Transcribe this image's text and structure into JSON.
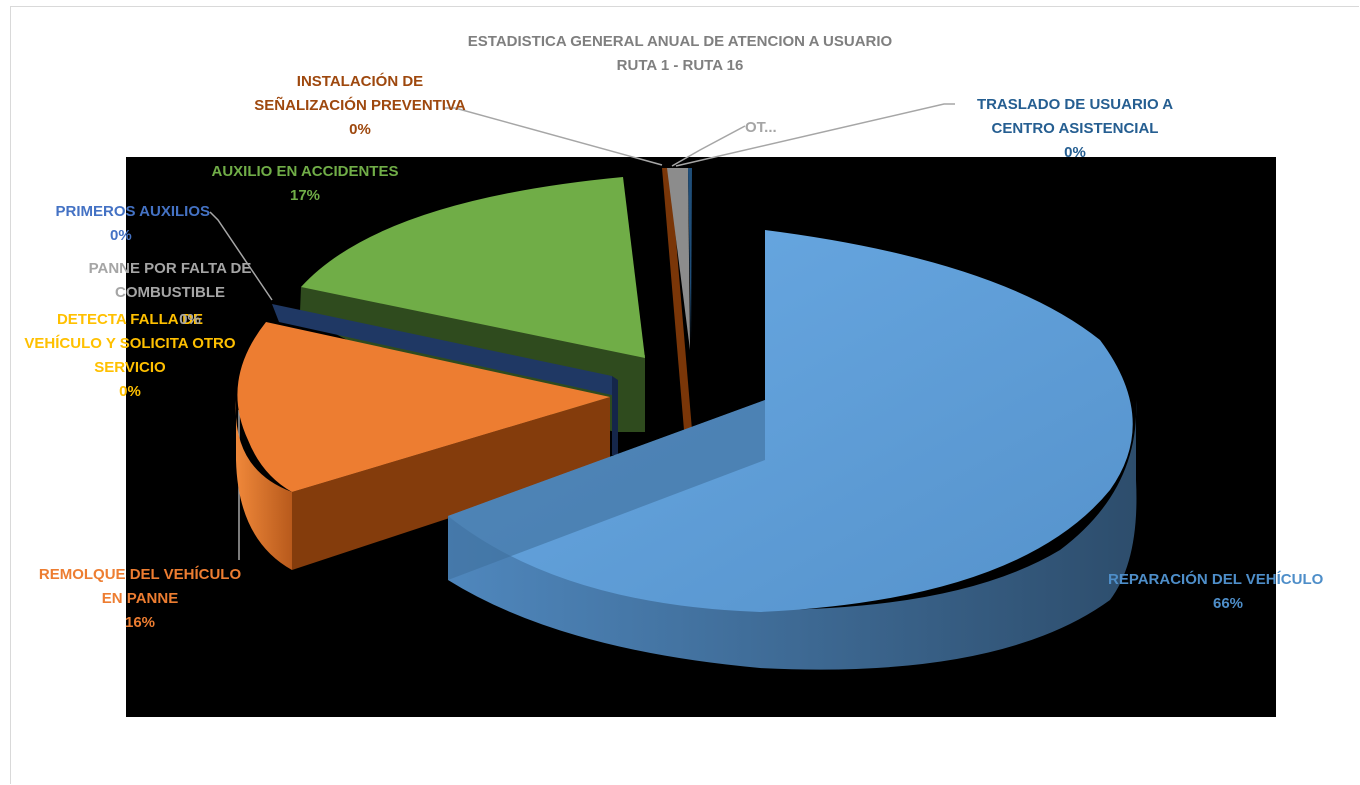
{
  "chart_data": {
    "type": "pie",
    "title_line1": "ESTADISTICA GENERAL ANUAL DE ATENCION A USUARIO",
    "title_line2": "RUTA 1 - RUTA 16",
    "three_d": true,
    "exploded": true,
    "slices": [
      {
        "name": "REPARACIÓN DEL VEHÍCULO",
        "percent_label": "66%",
        "value": 66,
        "color": "#5b9bd5"
      },
      {
        "name": "REMOLQUE DEL VEHÍCULO EN PANNE",
        "percent_label": "16%",
        "value": 16,
        "color": "#ed7d31"
      },
      {
        "name": "DETECTA FALLA DE VEHÍCULO Y SOLICITA OTRO SERVICIO",
        "percent_label": "0%",
        "value": 0.3,
        "color": "#ffc000"
      },
      {
        "name": "PANNE POR FALTA DE COMBUSTIBLE",
        "percent_label": "0%",
        "value": 0.3,
        "color": "#a5a5a5"
      },
      {
        "name": "PRIMEROS AUXILIOS",
        "percent_label": "0%",
        "value": 0.5,
        "color": "#264478"
      },
      {
        "name": "AUXILIO EN ACCIDENTES",
        "percent_label": "17%",
        "value": 17,
        "color": "#70ad47"
      },
      {
        "name": "INSTALACIÓN DE SEÑALIZACIÓN PREVENTIVA",
        "percent_label": "0%",
        "value": 0.3,
        "color": "#9e480e"
      },
      {
        "name": "OT...",
        "percent_label": "",
        "value": 0.4,
        "color": "#7f7f7f"
      },
      {
        "name": "TRASLADO DE USUARIO A CENTRO ASISTENCIAL",
        "percent_label": "0%",
        "value": 0.3,
        "color": "#255e91"
      }
    ]
  },
  "labels": {
    "reparacion": {
      "l1": "REPARACIÓN DEL VEHÍCULO",
      "l2": "66%",
      "color": "#4e8ec9"
    },
    "remolque": {
      "l1": "REMOLQUE DEL VEHÍCULO",
      "l2": "EN PANNE",
      "l3": "16%",
      "color": "#ed7d31"
    },
    "detecta": {
      "l1": "DETECTA FALLA DE",
      "l2": "VEHÍCULO Y SOLICITA OTRO",
      "l3": "SERVICIO",
      "l4": "0%",
      "color": "#ffc000"
    },
    "panne": {
      "l1": "PANNE POR FALTA DE",
      "l2": "COMBUSTIBLE",
      "l3": "0%",
      "color": "#a5a5a5"
    },
    "primeros": {
      "l1": "PRIMEROS AUXILIOS",
      "l2": "0%",
      "color": "#4472c4"
    },
    "auxilio": {
      "l1": "AUXILIO EN ACCIDENTES",
      "l2": "17%",
      "color": "#70ad47"
    },
    "instalacion": {
      "l1": "INSTALACIÓN DE",
      "l2": "SEÑALIZACIÓN PREVENTIVA",
      "l3": "0%",
      "color": "#9e480e"
    },
    "otros": {
      "l1": "OT...",
      "color": "#a5a5a5"
    },
    "traslado": {
      "l1": "TRASLADO DE USUARIO A",
      "l2": "CENTRO ASISTENCIAL",
      "l3": "0%",
      "color": "#255e91"
    }
  }
}
